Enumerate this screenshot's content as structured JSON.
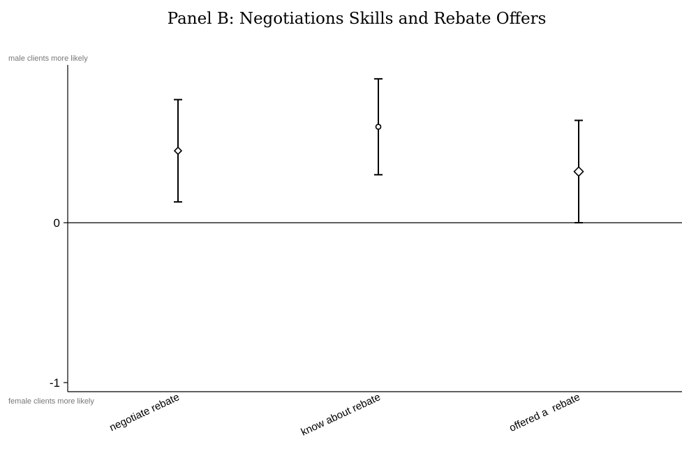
{
  "chart_data": {
    "type": "scatter",
    "title": "Panel B: Negotiations Skills and Rebate Offers",
    "top_label": "male clients more likely",
    "bottom_label": "female clients more likely",
    "ylim": [
      -1.06,
      1.0
    ],
    "yticks": [
      0,
      -1
    ],
    "ytick_labels": [
      "0",
      "-1"
    ],
    "reference_line": 0,
    "grid": false,
    "legend": "none",
    "categories": [
      "negotiate rebate",
      "know about rebate",
      "offered a  rebate"
    ],
    "points": [
      {
        "category": "negotiate rebate",
        "estimate": 0.45,
        "ci_low": 0.13,
        "ci_high": 0.77,
        "marker": "diamond"
      },
      {
        "category": "know about rebate",
        "estimate": 0.6,
        "ci_low": 0.3,
        "ci_high": 0.9,
        "marker": "circle"
      },
      {
        "category": "offered a  rebate",
        "estimate": 0.32,
        "ci_low": 0.0,
        "ci_high": 0.64,
        "marker": "diamond"
      }
    ],
    "colors": {
      "marks": "#000000",
      "axis": "#000000",
      "edge_labels": "#777777"
    }
  }
}
